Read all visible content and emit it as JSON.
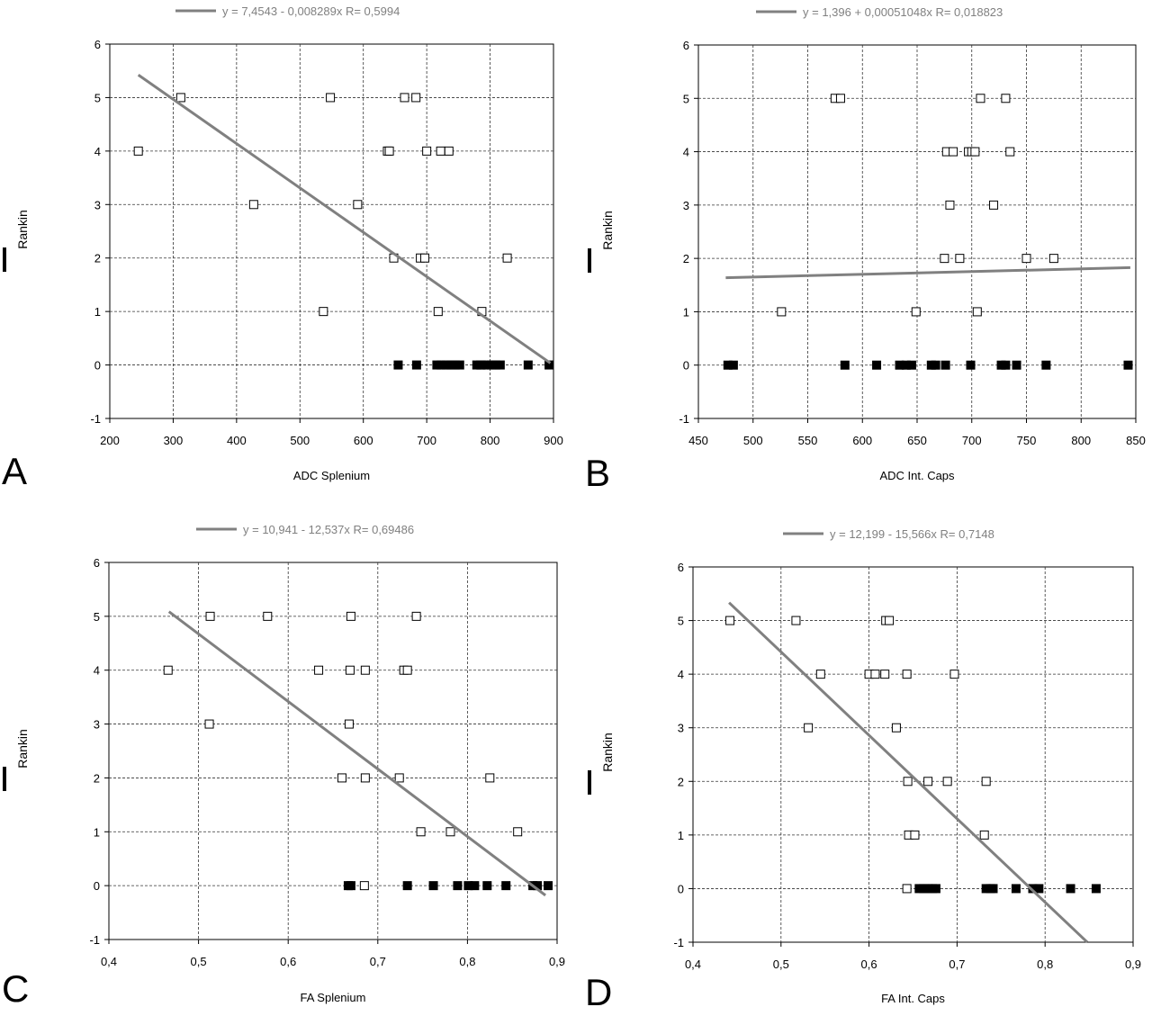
{
  "colors": {
    "axis": "#000000",
    "grid": "#333333",
    "fit_line": "#808080",
    "legend_text": "#808080",
    "filled_marker": "#000000"
  },
  "chart_data": [
    {
      "type": "scatter",
      "panel_label": "A",
      "xlabel": "ADC Splenium",
      "ylabel": "Rankin",
      "xlim": [
        200,
        900
      ],
      "ylim": [
        -1,
        6
      ],
      "xticks": [
        200,
        300,
        400,
        500,
        600,
        700,
        800,
        900
      ],
      "xtick_labels": [
        "200",
        "300",
        "400",
        "500",
        "600",
        "700",
        "800",
        "900"
      ],
      "yticks": [
        -1,
        0,
        1,
        2,
        3,
        4,
        5,
        6
      ],
      "ytick_labels": [
        "-1",
        "0",
        "1",
        "2",
        "3",
        "4",
        "5",
        "6"
      ],
      "grid": true,
      "legend_text": "y = 7,4543 - 0,008289x   R= 0,5994",
      "fit": {
        "intercept": 7.4543,
        "slope": -0.008289,
        "x_range": [
          245,
          895
        ]
      },
      "series": [
        {
          "marker": "open-square",
          "x": [
            312,
            548,
            665,
            683,
            245,
            638,
            641,
            700,
            722,
            735,
            427,
            591,
            648,
            690,
            697,
            827,
            537,
            718,
            787,
            785
          ],
          "y": [
            5,
            5,
            5,
            5,
            4,
            4,
            4,
            4,
            4,
            4,
            3,
            3,
            2,
            2,
            2,
            2,
            1,
            1,
            1,
            0
          ]
        },
        {
          "marker": "filled-square",
          "x": [
            655,
            684,
            716,
            723,
            731,
            738,
            745,
            752,
            779,
            786,
            795,
            802,
            809,
            816,
            860,
            893
          ],
          "y": [
            0,
            0,
            0,
            0,
            0,
            0,
            0,
            0,
            0,
            0,
            0,
            0,
            0,
            0,
            0,
            0
          ]
        }
      ]
    },
    {
      "type": "scatter",
      "panel_label": "B",
      "xlabel": "ADC Int. Caps",
      "ylabel": "Rankin",
      "xlim": [
        450,
        850
      ],
      "ylim": [
        -1,
        6
      ],
      "xticks": [
        450,
        500,
        550,
        600,
        650,
        700,
        750,
        800,
        850
      ],
      "xtick_labels": [
        "450",
        "500",
        "550",
        "600",
        "650",
        "700",
        "750",
        "800",
        "850"
      ],
      "yticks": [
        -1,
        0,
        1,
        2,
        3,
        4,
        5,
        6
      ],
      "ytick_labels": [
        "-1",
        "0",
        "1",
        "2",
        "3",
        "4",
        "5",
        "6"
      ],
      "grid": true,
      "legend_text": "y = 1,396 + 0,00051048x   R= 0,018823",
      "fit": {
        "intercept": 1.396,
        "slope": 0.00051048,
        "x_range": [
          475,
          845
        ]
      },
      "series": [
        {
          "marker": "open-square",
          "x": [
            575,
            580,
            708,
            731,
            677,
            683,
            697,
            700,
            703,
            735,
            680,
            720,
            675,
            689,
            750,
            775,
            526,
            649,
            705
          ],
          "y": [
            5,
            5,
            5,
            5,
            4,
            4,
            4,
            4,
            4,
            4,
            3,
            3,
            2,
            2,
            2,
            2,
            1,
            1,
            1
          ]
        },
        {
          "marker": "filled-square",
          "x": [
            477,
            482,
            584,
            613,
            634,
            640,
            645,
            663,
            667,
            676,
            699,
            727,
            731,
            741,
            768,
            843
          ],
          "y": [
            0,
            0,
            0,
            0,
            0,
            0,
            0,
            0,
            0,
            0,
            0,
            0,
            0,
            0,
            0,
            0
          ]
        }
      ]
    },
    {
      "type": "scatter",
      "panel_label": "C",
      "xlabel": "FA Splenium",
      "ylabel": "Rankin",
      "xlim": [
        0.4,
        0.9
      ],
      "ylim": [
        -1,
        6
      ],
      "xticks": [
        0.4,
        0.5,
        0.6,
        0.7,
        0.8,
        0.9
      ],
      "xtick_labels": [
        "0,4",
        "0,5",
        "0,6",
        "0,7",
        "0,8",
        "0,9"
      ],
      "yticks": [
        -1,
        0,
        1,
        2,
        3,
        4,
        5,
        6
      ],
      "ytick_labels": [
        "-1",
        "0",
        "1",
        "2",
        "3",
        "4",
        "5",
        "6"
      ],
      "grid": true,
      "legend_text": "y = 10,941 - 12,537x   R= 0,69486",
      "fit": {
        "intercept": 10.941,
        "slope": -12.537,
        "x_range": [
          0.467,
          0.887
        ]
      },
      "series": [
        {
          "marker": "open-square",
          "x": [
            0.513,
            0.577,
            0.67,
            0.743,
            0.466,
            0.634,
            0.669,
            0.686,
            0.729,
            0.733,
            0.512,
            0.668,
            0.66,
            0.686,
            0.724,
            0.825,
            0.748,
            0.781,
            0.856,
            0.685
          ],
          "y": [
            5,
            5,
            5,
            5,
            4,
            4,
            4,
            4,
            4,
            4,
            3,
            3,
            2,
            2,
            2,
            2,
            1,
            1,
            1,
            0
          ]
        },
        {
          "marker": "filled-square",
          "x": [
            0.667,
            0.67,
            0.733,
            0.762,
            0.789,
            0.801,
            0.808,
            0.822,
            0.843,
            0.873,
            0.878,
            0.89
          ],
          "y": [
            0,
            0,
            0,
            0,
            0,
            0,
            0,
            0,
            0,
            0,
            0,
            0
          ]
        }
      ]
    },
    {
      "type": "scatter",
      "panel_label": "D",
      "xlabel": "FA Int. Caps",
      "ylabel": "Rankin",
      "xlim": [
        0.4,
        0.9
      ],
      "ylim": [
        -1,
        6
      ],
      "xticks": [
        0.4,
        0.5,
        0.6,
        0.7,
        0.8,
        0.9
      ],
      "xtick_labels": [
        "0,4",
        "0,5",
        "0,6",
        "0,7",
        "0,8",
        "0,9"
      ],
      "yticks": [
        -1,
        0,
        1,
        2,
        3,
        4,
        5,
        6
      ],
      "ytick_labels": [
        "-1",
        "0",
        "1",
        "2",
        "3",
        "4",
        "5",
        "6"
      ],
      "grid": true,
      "legend_text": "y = 12,199 - 15,566x   R= 0,7148",
      "fit": {
        "intercept": 12.199,
        "slope": -15.566,
        "x_range": [
          0.441,
          0.848
        ]
      },
      "series": [
        {
          "marker": "open-square",
          "x": [
            0.442,
            0.517,
            0.619,
            0.623,
            0.545,
            0.6,
            0.607,
            0.618,
            0.643,
            0.697,
            0.531,
            0.631,
            0.644,
            0.667,
            0.689,
            0.733,
            0.645,
            0.652,
            0.731,
            0.643
          ],
          "y": [
            5,
            5,
            5,
            5,
            4,
            4,
            4,
            4,
            4,
            4,
            3,
            3,
            2,
            2,
            2,
            2,
            1,
            1,
            1,
            0
          ]
        },
        {
          "marker": "filled-square",
          "x": [
            0.657,
            0.662,
            0.667,
            0.672,
            0.676,
            0.733,
            0.738,
            0.741,
            0.767,
            0.786,
            0.793,
            0.829,
            0.858
          ],
          "y": [
            0,
            0,
            0,
            0,
            0,
            0,
            0,
            0,
            0,
            0,
            0,
            0,
            0
          ]
        }
      ]
    }
  ]
}
